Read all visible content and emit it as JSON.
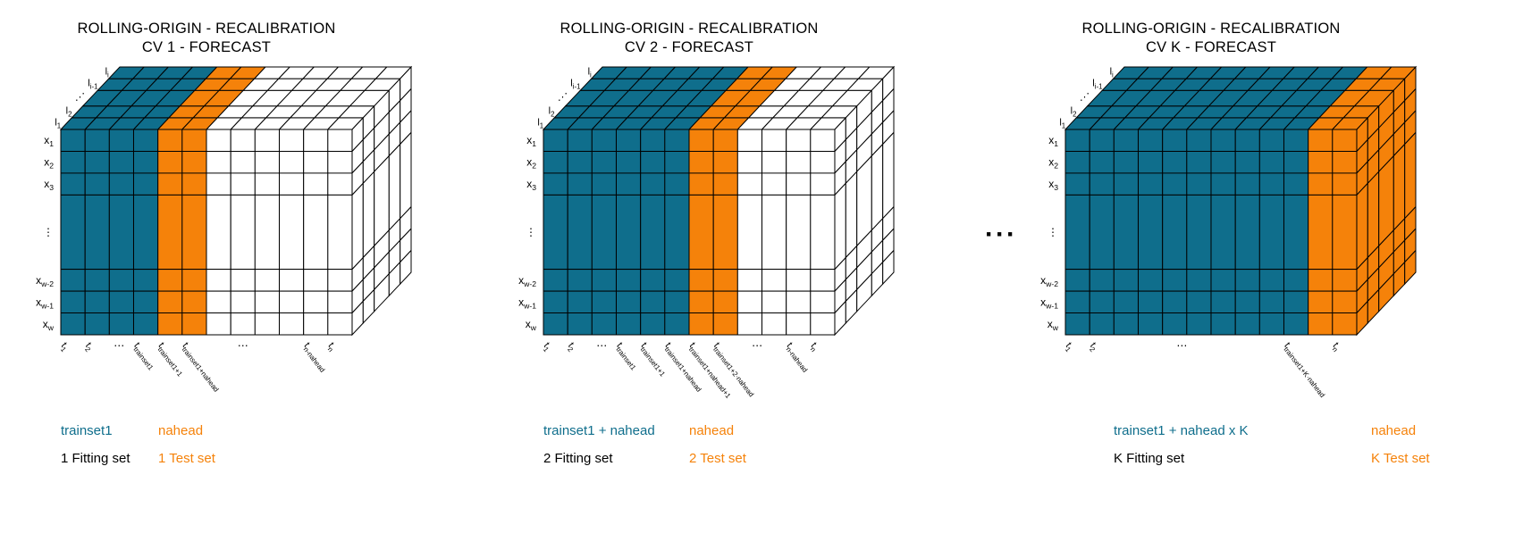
{
  "figure": {
    "ellipsis": "···",
    "colors": {
      "blue": "#0F6E8C",
      "orange": "#F5820A",
      "white": "#FFFFFF",
      "grid": "#000000",
      "text": "#000000"
    },
    "panels": [
      {
        "title_line1": "ROLLING-ORIGIN - RECALIBRATION",
        "title_line2": "CV 1 - FORECAST",
        "cube": {
          "columns": 12,
          "fill_pattern": {
            "blue_cols": 4,
            "orange_cols": 2
          },
          "row_labels": [
            "x_{1}",
            "x_{2}",
            "x_{3}",
            "⋮",
            "x_{w-2}",
            "x_{w-1}",
            "x_{w}"
          ],
          "depth_labels_top_to_bottom": [
            "l_{i}",
            "l_{i-1}",
            "⋰",
            "l_{2}",
            "l_{1}"
          ],
          "x_axis_labels": [
            {
              "col": 0,
              "text": "t_{1}"
            },
            {
              "col": 1,
              "text": "t_{2}"
            },
            {
              "col": 2.4,
              "text": "..."
            },
            {
              "col": 3,
              "text": "t_{trainset1}"
            },
            {
              "col": 4,
              "text": "t_{trainset1+1}"
            },
            {
              "col": 5,
              "text": "t_{trainset1+nahead}"
            },
            {
              "col": 7.5,
              "text": "..."
            },
            {
              "col": 10,
              "text": "t_{n-nahead}"
            },
            {
              "col": 11,
              "text": "t_{n}"
            }
          ]
        },
        "legend": {
          "train_label": "trainset1",
          "train_col": 0,
          "test_label": "nahead",
          "test_col": 4,
          "fit_label": "1 Fitting set",
          "testset_label": "1 Test set"
        }
      },
      {
        "title_line1": "ROLLING-ORIGIN - RECALIBRATION",
        "title_line2": "CV 2 - FORECAST",
        "cube": {
          "columns": 12,
          "fill_pattern": {
            "blue_cols": 6,
            "orange_cols": 2
          },
          "row_labels": [
            "x_{1}",
            "x_{2}",
            "x_{3}",
            "⋮",
            "x_{w-2}",
            "x_{w-1}",
            "x_{w}"
          ],
          "depth_labels_top_to_bottom": [
            "l_{i}",
            "l_{i-1}",
            "⋰",
            "l_{2}",
            "l_{1}"
          ],
          "x_axis_labels": [
            {
              "col": 0,
              "text": "t_{1}"
            },
            {
              "col": 1,
              "text": "t_{2}"
            },
            {
              "col": 2.4,
              "text": "..."
            },
            {
              "col": 3,
              "text": "t_{trainset1}"
            },
            {
              "col": 4,
              "text": "t_{trainset1+1}"
            },
            {
              "col": 5,
              "text": "t_{trainset1+nahead}"
            },
            {
              "col": 6,
              "text": "t_{trainset1+nahead+1}"
            },
            {
              "col": 7,
              "text": "t_{trainset1+2·nahead}"
            },
            {
              "col": 8.8,
              "text": "..."
            },
            {
              "col": 10,
              "text": "t_{n-nahead}"
            },
            {
              "col": 11,
              "text": "t_{n}"
            }
          ]
        },
        "legend": {
          "train_label": "trainset1 + nahead",
          "train_col": 0,
          "test_label": "nahead",
          "test_col": 6,
          "fit_label": "2 Fitting set",
          "testset_label": "2 Test set"
        }
      },
      {
        "title_line1": "ROLLING-ORIGIN - RECALIBRATION",
        "title_line2": "CV K - FORECAST",
        "cube": {
          "columns": 12,
          "fill_pattern": {
            "blue_cols": 10,
            "orange_cols": 2
          },
          "row_labels": [
            "x_{1}",
            "x_{2}",
            "x_{3}",
            "⋮",
            "x_{w-2}",
            "x_{w-1}",
            "x_{w}"
          ],
          "depth_labels_top_to_bottom": [
            "l_{i}",
            "l_{i-1}",
            "⋰",
            "l_{2}",
            "l_{1}"
          ],
          "x_axis_labels": [
            {
              "col": 0,
              "text": "t_{1}"
            },
            {
              "col": 1,
              "text": "t_{2}"
            },
            {
              "col": 4.8,
              "text": "..."
            },
            {
              "col": 9,
              "text": "t_{trainset1+K·nahead}"
            },
            {
              "col": 11,
              "text": "t_{n}"
            }
          ]
        },
        "legend": {
          "train_label": "trainset1 + nahead x K",
          "train_col": 2,
          "test_label": "nahead",
          "test_col": 12.6,
          "fit_label": "K Fitting set",
          "testset_label": "K Test set"
        }
      }
    ]
  }
}
